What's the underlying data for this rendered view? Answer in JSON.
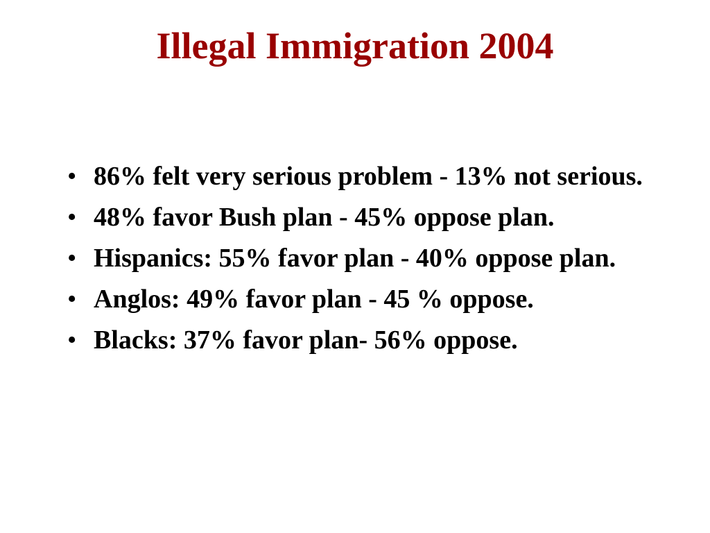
{
  "slide": {
    "title": "Illegal Immigration 2004",
    "bullet_symbol": "•",
    "bullets": [
      "86% felt very serious problem - 13% not serious.",
      "48% favor Bush plan - 45% oppose plan.",
      "Hispanics: 55% favor plan - 40% oppose plan.",
      "Anglos: 49% favor plan - 45 % oppose.",
      "Blacks: 37% favor plan- 56% oppose."
    ],
    "colors": {
      "title": "#990000",
      "text": "#000000",
      "background": "#ffffff"
    }
  }
}
